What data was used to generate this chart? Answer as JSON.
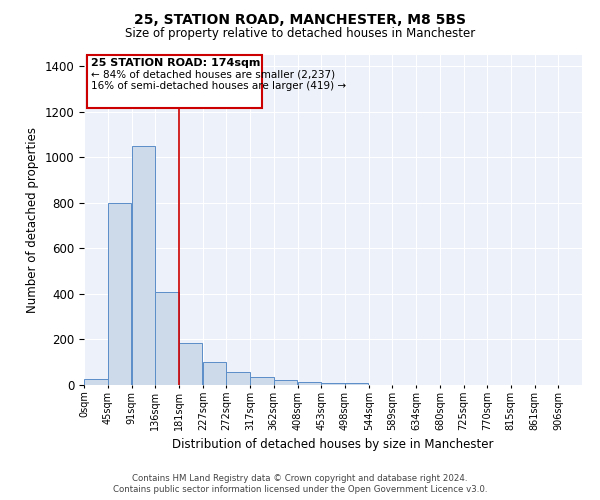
{
  "title": "25, STATION ROAD, MANCHESTER, M8 5BS",
  "subtitle": "Size of property relative to detached houses in Manchester",
  "xlabel": "Distribution of detached houses by size in Manchester",
  "ylabel": "Number of detached properties",
  "bar_color": "#cddaea",
  "bar_edge_color": "#5b8dc8",
  "background_color": "#edf1f9",
  "grid_color": "#ffffff",
  "vline_x": 181,
  "vline_color": "#cc0000",
  "annotation_title": "25 STATION ROAD: 174sqm",
  "annotation_line1": "← 84% of detached houses are smaller (2,237)",
  "annotation_line2": "16% of semi-detached houses are larger (419) →",
  "bin_starts": [
    0,
    45,
    91,
    136,
    181,
    227,
    272,
    317,
    362,
    408,
    453,
    498,
    544,
    589,
    634,
    680,
    725,
    770,
    815,
    861
  ],
  "bin_labels": [
    "0sqm",
    "45sqm",
    "91sqm",
    "136sqm",
    "181sqm",
    "227sqm",
    "272sqm",
    "317sqm",
    "362sqm",
    "408sqm",
    "453sqm",
    "498sqm",
    "544sqm",
    "589sqm",
    "634sqm",
    "680sqm",
    "725sqm",
    "770sqm",
    "815sqm",
    "861sqm",
    "906sqm"
  ],
  "bar_heights": [
    25,
    800,
    1050,
    410,
    185,
    100,
    55,
    35,
    20,
    15,
    10,
    10,
    0,
    0,
    0,
    0,
    0,
    0,
    0,
    0
  ],
  "ylim": [
    0,
    1450
  ],
  "xlim": [
    0,
    951
  ],
  "yticks": [
    0,
    200,
    400,
    600,
    800,
    1000,
    1200,
    1400
  ],
  "footer_line1": "Contains HM Land Registry data © Crown copyright and database right 2024.",
  "footer_line2": "Contains public sector information licensed under the Open Government Licence v3.0."
}
